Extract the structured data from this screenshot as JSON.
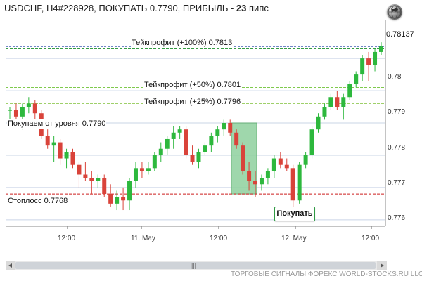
{
  "header": {
    "symbol_text": "USDCHF, H4#228928, ПОКУПАТЬ 0.7790, ПРИБЫЛЬ - ",
    "pips_value": "23",
    "pips_unit": " пипс"
  },
  "current_price": "0.78137",
  "chart_data": {
    "type": "candlestick",
    "x_ticks": [
      "12:00",
      "11. May",
      "12:00",
      "12. May",
      "12:00"
    ],
    "y_ticks": [
      "0.78",
      "0.779",
      "0.778",
      "0.777",
      "0.776"
    ],
    "ylim": [
      0.7758,
      0.7822
    ],
    "levels": [
      {
        "label": "Тейкпрофит (+100%) 0.7813",
        "value": 0.7813,
        "color": "#1a8f2a"
      },
      {
        "label": "Тейкпрофит (+50%) 0.7801",
        "value": 0.7801,
        "color": "#7fc94d"
      },
      {
        "label": "Тейкпрофит (+25%) 0.7796",
        "value": 0.7796,
        "color": "#9fd06a"
      },
      {
        "label": "Покупаем от уровня 0.7790",
        "value": 0.779,
        "color": "#000000"
      },
      {
        "label": "Стоплосс 0.7768",
        "value": 0.7768,
        "color": "#cc1f1f"
      }
    ],
    "bid_line": 0.78137,
    "entry_zone": {
      "from": 0.7768,
      "to": 0.779
    },
    "candles": [
      [
        0.7794,
        0.7795,
        0.7791,
        0.7794
      ],
      [
        0.7794,
        0.7796,
        0.779,
        0.7792
      ],
      [
        0.7792,
        0.7796,
        0.7788,
        0.7795
      ],
      [
        0.7795,
        0.7798,
        0.7793,
        0.7796
      ],
      [
        0.7796,
        0.7797,
        0.7791,
        0.7793
      ],
      [
        0.7793,
        0.7794,
        0.7785,
        0.7786
      ],
      [
        0.7786,
        0.7788,
        0.7782,
        0.7783
      ],
      [
        0.7783,
        0.7786,
        0.7778,
        0.7784
      ],
      [
        0.7784,
        0.7785,
        0.7777,
        0.7779
      ],
      [
        0.7779,
        0.7782,
        0.7776,
        0.7781
      ],
      [
        0.7781,
        0.7782,
        0.7776,
        0.7777
      ],
      [
        0.7777,
        0.7778,
        0.777,
        0.7774
      ],
      [
        0.7774,
        0.7778,
        0.7772,
        0.7773
      ],
      [
        0.7773,
        0.7775,
        0.7768,
        0.7772
      ],
      [
        0.7772,
        0.7774,
        0.777,
        0.7773
      ],
      [
        0.7773,
        0.7774,
        0.7767,
        0.7768
      ],
      [
        0.7768,
        0.7771,
        0.7764,
        0.7765
      ],
      [
        0.7765,
        0.7769,
        0.7763,
        0.7767
      ],
      [
        0.7767,
        0.777,
        0.7763,
        0.7766
      ],
      [
        0.7766,
        0.7773,
        0.7763,
        0.7772
      ],
      [
        0.7772,
        0.7778,
        0.777,
        0.7776
      ],
      [
        0.7776,
        0.7778,
        0.7773,
        0.7775
      ],
      [
        0.7775,
        0.7778,
        0.7774,
        0.7776
      ],
      [
        0.7776,
        0.7781,
        0.7775,
        0.778
      ],
      [
        0.778,
        0.7784,
        0.7778,
        0.7782
      ],
      [
        0.7782,
        0.7786,
        0.778,
        0.7785
      ],
      [
        0.7785,
        0.7789,
        0.7782,
        0.7787
      ],
      [
        0.7787,
        0.7789,
        0.7785,
        0.7788
      ],
      [
        0.7788,
        0.7789,
        0.7779,
        0.778
      ],
      [
        0.778,
        0.7783,
        0.7777,
        0.7778
      ],
      [
        0.7778,
        0.7782,
        0.7776,
        0.7781
      ],
      [
        0.7781,
        0.7784,
        0.778,
        0.7783
      ],
      [
        0.7783,
        0.7787,
        0.7781,
        0.7786
      ],
      [
        0.7786,
        0.7789,
        0.7784,
        0.7788
      ],
      [
        0.7788,
        0.7791,
        0.7786,
        0.779
      ],
      [
        0.779,
        0.7791,
        0.7786,
        0.7787
      ],
      [
        0.7787,
        0.7788,
        0.7782,
        0.7783
      ],
      [
        0.7783,
        0.7784,
        0.7774,
        0.7775
      ],
      [
        0.7775,
        0.7778,
        0.7769,
        0.7772
      ],
      [
        0.7772,
        0.7775,
        0.7767,
        0.7771
      ],
      [
        0.7771,
        0.7774,
        0.7769,
        0.7773
      ],
      [
        0.7773,
        0.7776,
        0.7771,
        0.7775
      ],
      [
        0.7775,
        0.778,
        0.7773,
        0.7779
      ],
      [
        0.7779,
        0.7781,
        0.7776,
        0.7777
      ],
      [
        0.7777,
        0.7779,
        0.7775,
        0.7776
      ],
      [
        0.7776,
        0.7777,
        0.776,
        0.7766
      ],
      [
        0.7766,
        0.7778,
        0.7765,
        0.7777
      ],
      [
        0.7777,
        0.7781,
        0.7776,
        0.778
      ],
      [
        0.778,
        0.7789,
        0.7779,
        0.7788
      ],
      [
        0.7788,
        0.7793,
        0.7787,
        0.7792
      ],
      [
        0.7792,
        0.7796,
        0.7791,
        0.7795
      ],
      [
        0.7795,
        0.7799,
        0.7794,
        0.7798
      ],
      [
        0.7798,
        0.78,
        0.7794,
        0.7795
      ],
      [
        0.7795,
        0.7799,
        0.7791,
        0.7798
      ],
      [
        0.7798,
        0.7803,
        0.7797,
        0.7802
      ],
      [
        0.7802,
        0.7806,
        0.7801,
        0.7805
      ],
      [
        0.7805,
        0.7811,
        0.7803,
        0.781
      ],
      [
        0.781,
        0.7812,
        0.7803,
        0.7808
      ],
      [
        0.7808,
        0.7813,
        0.7806,
        0.7812
      ],
      [
        0.7812,
        0.7815,
        0.7811,
        0.78137
      ]
    ]
  },
  "buy_button": {
    "label": "Покупать"
  },
  "footer": {
    "text": "ТОРГОВЫЕ СИГНАЛЫ ФОРЕКС WORLD-STOCKS.RU LLC"
  },
  "icons": {
    "globe": "globe-icon"
  },
  "colors": {
    "up": "#2db83d",
    "down": "#d9433a",
    "entry_zone": "#8fd19e",
    "grid": "#c9d4e6"
  }
}
